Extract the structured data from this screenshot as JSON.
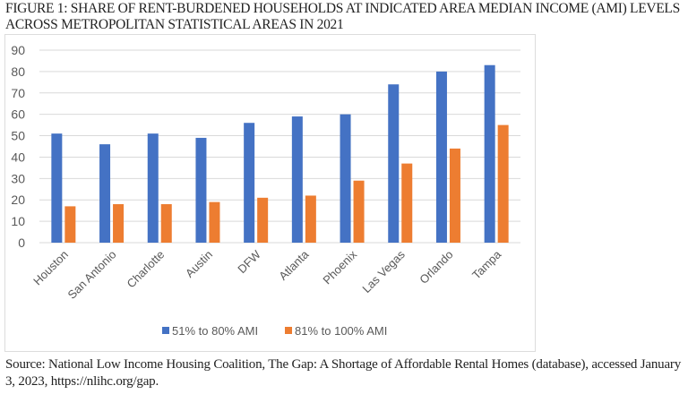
{
  "figure": {
    "title": "FIGURE 1: SHARE OF RENT-BURDENED HOUSEHOLDS AT INDICATED AREA MEDIAN INCOME (AMI) LEVELS ACROSS METROPOLITAN STATISTICAL AREAS IN 2021",
    "source": "Source: National Low Income Housing Coalition, The Gap: A Shortage of Affordable Rental Homes (database), accessed January 3, 2023, https://nlihc.org/gap."
  },
  "chart_data": {
    "type": "bar",
    "title": "",
    "xlabel": "",
    "ylabel": "",
    "categories": [
      "Houston",
      "San Antonio",
      "Charlotte",
      "Austin",
      "DFW",
      "Atlanta",
      "Phoenix",
      "Las Vegas",
      "Orlando",
      "Tampa"
    ],
    "series": [
      {
        "name": "51% to 80% AMI",
        "color": "#4472C4",
        "values": [
          51,
          46,
          51,
          49,
          56,
          59,
          60,
          74,
          80,
          83
        ]
      },
      {
        "name": "81% to 100% AMI",
        "color": "#ED7D31",
        "values": [
          17,
          18,
          18,
          19,
          21,
          22,
          29,
          37,
          44,
          55
        ]
      }
    ],
    "ylim": [
      0,
      90
    ],
    "yticks": [
      0,
      10,
      20,
      30,
      40,
      50,
      60,
      70,
      80,
      90
    ],
    "grid": true,
    "legend": "bottom"
  }
}
